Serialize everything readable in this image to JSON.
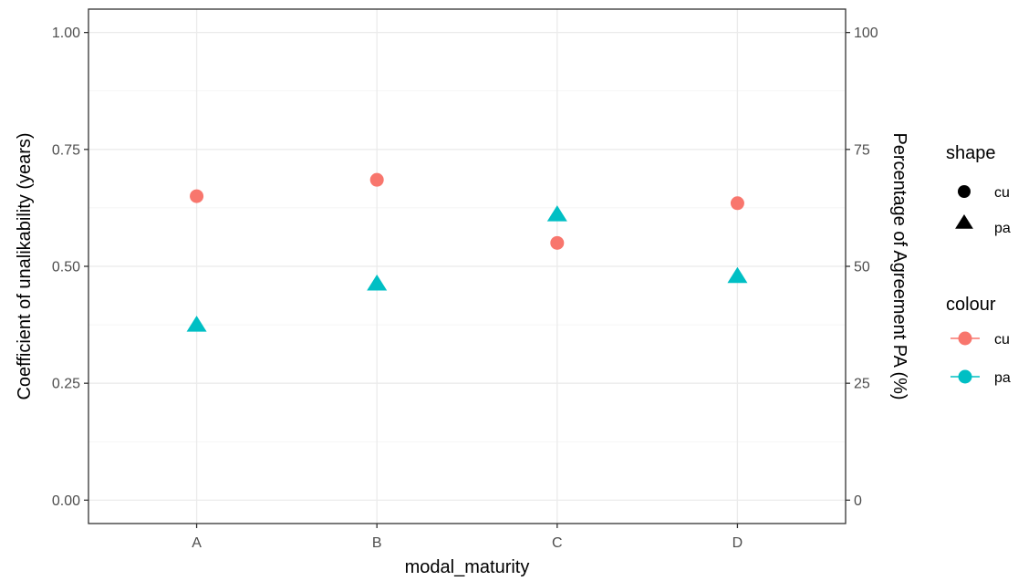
{
  "chart_data": {
    "type": "scatter",
    "title": "",
    "xlabel": "modal_maturity",
    "ylabel": "Coefficient of unalikability (years)",
    "y2label": "Percentage of Agreement PA (%)",
    "categories": [
      "A",
      "B",
      "C",
      "D"
    ],
    "ylim": [
      -0.05,
      1.05
    ],
    "y_ticks": [
      "0.00",
      "0.25",
      "0.50",
      "0.75",
      "1.00"
    ],
    "y2lim": [
      -5,
      105
    ],
    "y2_ticks": [
      "0",
      "25",
      "50",
      "75",
      "100"
    ],
    "grid": true,
    "legend_position": "right",
    "series": [
      {
        "name": "cu",
        "axis": "left",
        "shape": "circle",
        "color": "#F8766D",
        "values": [
          0.65,
          0.685,
          0.55,
          0.635
        ]
      },
      {
        "name": "pa",
        "axis": "right",
        "shape": "triangle",
        "color": "#00BFC4",
        "values": [
          37.5,
          46.3,
          61.1,
          47.9
        ]
      }
    ],
    "legends": [
      {
        "title": "shape",
        "items": [
          {
            "label": "cu",
            "shape": "circle"
          },
          {
            "label": "pa",
            "shape": "triangle"
          }
        ]
      },
      {
        "title": "colour",
        "items": [
          {
            "label": "cu",
            "color": "#F8766D"
          },
          {
            "label": "pa",
            "color": "#00BFC4"
          }
        ]
      }
    ]
  }
}
